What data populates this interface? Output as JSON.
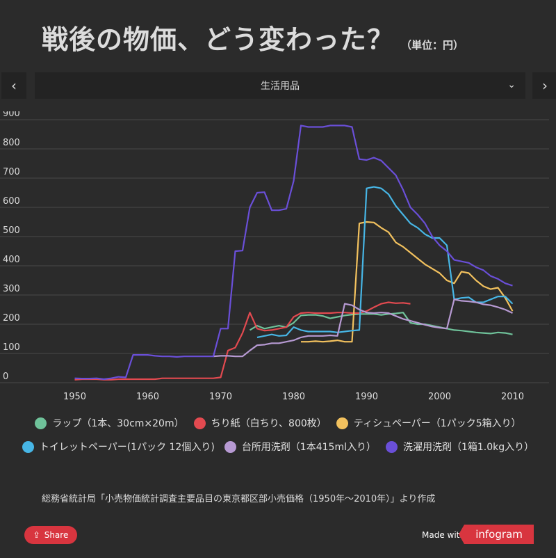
{
  "header": {
    "title": "戦後の物価、どう変わった？",
    "unit": "（単位：円）"
  },
  "selector": {
    "prev_label": "‹",
    "next_label": "›",
    "selected": "生活用品",
    "chevron": "⌄"
  },
  "chart_data": {
    "type": "line",
    "title": "戦後の物価、どう変わった？",
    "xlabel": "",
    "ylabel": "",
    "xlim": [
      1943,
      2015
    ],
    "ylim": [
      0,
      900
    ],
    "x_ticks": [
      1950,
      1960,
      1970,
      1980,
      1990,
      2000,
      2010
    ],
    "y_ticks": [
      0,
      100,
      200,
      300,
      400,
      500,
      600,
      700,
      800,
      900
    ],
    "grid": true,
    "legend_position": "bottom",
    "series": [
      {
        "name": "ラップ（1本、30cm×20m）",
        "color": "#6fc29a",
        "points": [
          [
            1974,
            180
          ],
          [
            1975,
            195
          ],
          [
            1976,
            185
          ],
          [
            1977,
            190
          ],
          [
            1978,
            195
          ],
          [
            1979,
            190
          ],
          [
            1980,
            205
          ],
          [
            1981,
            230
          ],
          [
            1982,
            232
          ],
          [
            1983,
            232
          ],
          [
            1984,
            228
          ],
          [
            1985,
            220
          ],
          [
            1986,
            225
          ],
          [
            1987,
            230
          ],
          [
            1988,
            233
          ],
          [
            1989,
            235
          ],
          [
            1990,
            235
          ],
          [
            1991,
            235
          ],
          [
            1992,
            232
          ],
          [
            1993,
            235
          ],
          [
            1994,
            237
          ],
          [
            1995,
            240
          ],
          [
            1996,
            205
          ],
          [
            1997,
            200
          ],
          [
            1998,
            200
          ],
          [
            1999,
            195
          ],
          [
            2000,
            190
          ],
          [
            2001,
            185
          ],
          [
            2002,
            180
          ],
          [
            2003,
            178
          ],
          [
            2004,
            175
          ],
          [
            2005,
            172
          ],
          [
            2006,
            170
          ],
          [
            2007,
            168
          ],
          [
            2008,
            172
          ],
          [
            2009,
            170
          ],
          [
            2010,
            165
          ]
        ]
      },
      {
        "name": "ちり紙（白ちり、800枚）",
        "color": "#e34a50",
        "points": [
          [
            1950,
            10
          ],
          [
            1951,
            12
          ],
          [
            1952,
            12
          ],
          [
            1953,
            12
          ],
          [
            1954,
            10
          ],
          [
            1955,
            10
          ],
          [
            1956,
            12
          ],
          [
            1957,
            12
          ],
          [
            1958,
            12
          ],
          [
            1959,
            12
          ],
          [
            1960,
            12
          ],
          [
            1961,
            12
          ],
          [
            1962,
            15
          ],
          [
            1963,
            15
          ],
          [
            1964,
            15
          ],
          [
            1965,
            15
          ],
          [
            1966,
            15
          ],
          [
            1967,
            15
          ],
          [
            1968,
            15
          ],
          [
            1969,
            15
          ],
          [
            1970,
            18
          ],
          [
            1971,
            110
          ],
          [
            1972,
            120
          ],
          [
            1973,
            170
          ],
          [
            1974,
            240
          ],
          [
            1975,
            185
          ],
          [
            1976,
            178
          ],
          [
            1977,
            180
          ],
          [
            1978,
            185
          ],
          [
            1979,
            190
          ],
          [
            1980,
            225
          ],
          [
            1981,
            238
          ],
          [
            1982,
            240
          ],
          [
            1983,
            238
          ],
          [
            1984,
            238
          ],
          [
            1985,
            238
          ],
          [
            1986,
            240
          ],
          [
            1987,
            240
          ],
          [
            1988,
            238
          ],
          [
            1989,
            238
          ],
          [
            1990,
            245
          ],
          [
            1991,
            258
          ],
          [
            1992,
            270
          ],
          [
            1993,
            275
          ],
          [
            1994,
            272
          ],
          [
            1995,
            273
          ],
          [
            1996,
            270
          ]
        ]
      },
      {
        "name": "ティシュペーパー（1パック5箱入り）",
        "color": "#f2c15e",
        "points": [
          [
            1981,
            140
          ],
          [
            1982,
            140
          ],
          [
            1983,
            142
          ],
          [
            1984,
            140
          ],
          [
            1985,
            142
          ],
          [
            1986,
            145
          ],
          [
            1987,
            140
          ],
          [
            1988,
            140
          ],
          [
            1989,
            545
          ],
          [
            1990,
            550
          ],
          [
            1991,
            548
          ],
          [
            1992,
            530
          ],
          [
            1993,
            515
          ],
          [
            1994,
            480
          ],
          [
            1995,
            465
          ],
          [
            1996,
            445
          ],
          [
            1997,
            425
          ],
          [
            1998,
            405
          ],
          [
            1999,
            390
          ],
          [
            2000,
            375
          ],
          [
            2001,
            350
          ],
          [
            2002,
            340
          ],
          [
            2003,
            380
          ],
          [
            2004,
            375
          ],
          [
            2005,
            350
          ],
          [
            2006,
            330
          ],
          [
            2007,
            320
          ],
          [
            2008,
            325
          ],
          [
            2009,
            290
          ],
          [
            2010,
            245
          ]
        ]
      },
      {
        "name": "トイレットペーパー(1パック 12個入り)",
        "color": "#47b6e6",
        "points": [
          [
            1975,
            155
          ],
          [
            1976,
            160
          ],
          [
            1977,
            165
          ],
          [
            1978,
            160
          ],
          [
            1979,
            162
          ],
          [
            1980,
            190
          ],
          [
            1981,
            180
          ],
          [
            1982,
            175
          ],
          [
            1983,
            175
          ],
          [
            1984,
            175
          ],
          [
            1985,
            175
          ],
          [
            1986,
            172
          ],
          [
            1987,
            175
          ],
          [
            1988,
            178
          ],
          [
            1989,
            180
          ],
          [
            1990,
            665
          ],
          [
            1991,
            670
          ],
          [
            1992,
            665
          ],
          [
            1993,
            645
          ],
          [
            1994,
            605
          ],
          [
            1995,
            575
          ],
          [
            1996,
            545
          ],
          [
            1997,
            530
          ],
          [
            1998,
            508
          ],
          [
            1999,
            495
          ],
          [
            2000,
            495
          ],
          [
            2001,
            470
          ],
          [
            2002,
            285
          ],
          [
            2003,
            290
          ],
          [
            2004,
            292
          ],
          [
            2005,
            275
          ],
          [
            2006,
            275
          ],
          [
            2007,
            285
          ],
          [
            2008,
            295
          ],
          [
            2009,
            295
          ],
          [
            2010,
            270
          ]
        ]
      },
      {
        "name": "台所用洗剤（1本415ml入り）",
        "color": "#b79ad3",
        "points": [
          [
            1969,
            90
          ],
          [
            1970,
            92
          ],
          [
            1971,
            92
          ],
          [
            1972,
            90
          ],
          [
            1973,
            90
          ],
          [
            1974,
            110
          ],
          [
            1975,
            128
          ],
          [
            1976,
            130
          ],
          [
            1977,
            135
          ],
          [
            1978,
            135
          ],
          [
            1979,
            140
          ],
          [
            1980,
            145
          ],
          [
            1981,
            155
          ],
          [
            1982,
            160
          ],
          [
            1983,
            160
          ],
          [
            1984,
            160
          ],
          [
            1985,
            162
          ],
          [
            1986,
            160
          ],
          [
            1987,
            270
          ],
          [
            1988,
            265
          ],
          [
            1989,
            250
          ],
          [
            1990,
            240
          ],
          [
            1991,
            238
          ],
          [
            1992,
            240
          ],
          [
            1993,
            238
          ],
          [
            1994,
            228
          ],
          [
            1995,
            218
          ],
          [
            1996,
            212
          ],
          [
            1997,
            205
          ],
          [
            1998,
            198
          ],
          [
            1999,
            192
          ],
          [
            2000,
            188
          ],
          [
            2001,
            185
          ],
          [
            2002,
            285
          ],
          [
            2003,
            280
          ],
          [
            2004,
            278
          ],
          [
            2005,
            275
          ],
          [
            2006,
            268
          ],
          [
            2007,
            265
          ],
          [
            2008,
            258
          ],
          [
            2009,
            250
          ],
          [
            2010,
            238
          ]
        ]
      },
      {
        "name": "洗濯用洗剤（1箱1.0kg入り）",
        "color": "#6a4fd8",
        "points": [
          [
            1950,
            15
          ],
          [
            1951,
            14
          ],
          [
            1952,
            14
          ],
          [
            1953,
            15
          ],
          [
            1954,
            12
          ],
          [
            1955,
            15
          ],
          [
            1956,
            20
          ],
          [
            1957,
            18
          ],
          [
            1958,
            95
          ],
          [
            1959,
            95
          ],
          [
            1960,
            95
          ],
          [
            1961,
            92
          ],
          [
            1962,
            90
          ],
          [
            1963,
            90
          ],
          [
            1964,
            88
          ],
          [
            1965,
            90
          ],
          [
            1966,
            90
          ],
          [
            1967,
            90
          ],
          [
            1968,
            90
          ],
          [
            1969,
            90
          ],
          [
            1970,
            185
          ],
          [
            1971,
            185
          ],
          [
            1972,
            450
          ],
          [
            1973,
            452
          ],
          [
            1974,
            600
          ],
          [
            1975,
            650
          ],
          [
            1976,
            652
          ],
          [
            1977,
            590
          ],
          [
            1978,
            590
          ],
          [
            1979,
            595
          ],
          [
            1980,
            690
          ],
          [
            1981,
            880
          ],
          [
            1982,
            875
          ],
          [
            1983,
            875
          ],
          [
            1984,
            875
          ],
          [
            1985,
            880
          ],
          [
            1986,
            880
          ],
          [
            1987,
            880
          ],
          [
            1988,
            875
          ],
          [
            1989,
            765
          ],
          [
            1990,
            762
          ],
          [
            1991,
            770
          ],
          [
            1992,
            760
          ],
          [
            1993,
            735
          ],
          [
            1994,
            710
          ],
          [
            1995,
            660
          ],
          [
            1996,
            600
          ],
          [
            1997,
            575
          ],
          [
            1998,
            545
          ],
          [
            1999,
            500
          ],
          [
            2000,
            470
          ],
          [
            2001,
            450
          ],
          [
            2002,
            420
          ],
          [
            2003,
            415
          ],
          [
            2004,
            410
          ],
          [
            2005,
            395
          ],
          [
            2006,
            385
          ],
          [
            2007,
            365
          ],
          [
            2008,
            355
          ],
          [
            2009,
            340
          ],
          [
            2010,
            332
          ]
        ]
      }
    ]
  },
  "legend_rows": [
    [
      0,
      1,
      2
    ],
    [
      3,
      4,
      5
    ]
  ],
  "source_note": "総務省統計局「小売物価統計調査主要品目の東京都区部小売価格（1950年〜2010年）」より作成",
  "footer": {
    "share_label": "Share",
    "made_with": "Made with",
    "brand": "infogram"
  }
}
